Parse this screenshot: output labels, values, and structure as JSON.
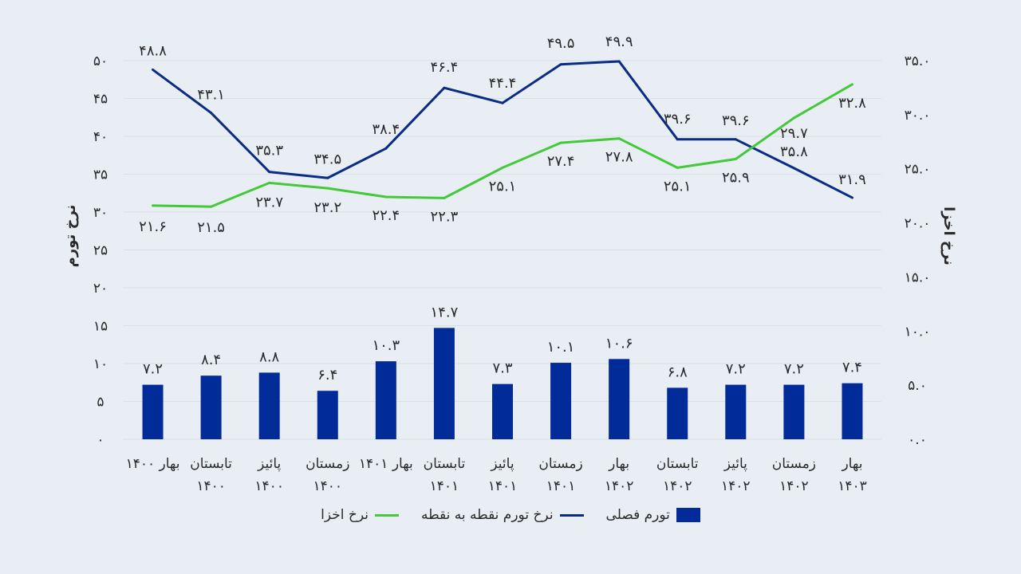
{
  "chart_data": {
    "type": "bar+line",
    "categories": [
      "بهار ۱۴۰۰",
      "تابستان ۱۴۰۰",
      "پائیز ۱۴۰۰",
      "زمستان ۱۴۰۰",
      "بهار ۱۴۰۱",
      "تابستان ۱۴۰۱",
      "پائیز ۱۴۰۱",
      "زمستان ۱۴۰۱",
      "بهار ۱۴۰۲",
      "تابستان ۱۴۰۲",
      "پائیز ۱۴۰۲",
      "زمستان ۱۴۰۲",
      "بهار ۱۴۰۳"
    ],
    "category_lines": [
      [
        "۱۴۰۰ بهار"
      ],
      [
        "تابستان",
        "۱۴۰۰"
      ],
      [
        "پائیز",
        "۱۴۰۰"
      ],
      [
        "زمستان",
        "۱۴۰۰"
      ],
      [
        "۱۴۰۱ بهار"
      ],
      [
        "تابستان",
        "۱۴۰۱"
      ],
      [
        "پائیز",
        "۱۴۰۱"
      ],
      [
        "زمستان",
        "۱۴۰۱"
      ],
      [
        "بهار",
        "۱۴۰۲"
      ],
      [
        "تابستان",
        "۱۴۰۲"
      ],
      [
        "پائیز",
        "۱۴۰۲"
      ],
      [
        "زمستان",
        "۱۴۰۲"
      ],
      [
        "بهار",
        "۱۴۰۳"
      ]
    ],
    "series": [
      {
        "name": "تورم فصلی",
        "kind": "bar",
        "axis": "left",
        "color": "#002b99",
        "values": [
          7.2,
          8.4,
          8.8,
          6.4,
          10.3,
          14.7,
          7.3,
          10.1,
          10.6,
          6.8,
          7.2,
          7.2,
          7.4
        ],
        "labels": [
          "۷.۲",
          "۸.۴",
          "۸.۸",
          "۶.۴",
          "۱۰.۳",
          "۱۴.۷",
          "۷.۳",
          "۱۰.۱",
          "۱۰.۶",
          "۶.۸",
          "۷.۲",
          "۷.۲",
          "۷.۴"
        ]
      },
      {
        "name": "نرخ تورم نقطه به نقطه",
        "kind": "line",
        "axis": "left",
        "color": "#0a2c84",
        "values": [
          48.8,
          43.1,
          35.3,
          34.5,
          38.4,
          46.4,
          44.4,
          49.5,
          49.9,
          39.6,
          39.6,
          35.8,
          31.9
        ],
        "labels": [
          "۴۸.۸",
          "۴۳.۱",
          "۳۵.۳",
          "۳۴.۵",
          "۳۸.۴",
          "۴۶.۴",
          "۴۴.۴",
          "۴۹.۵",
          "۴۹.۹",
          "۳۹.۶",
          "۳۹.۶",
          "۳۵.۸",
          "۳۱.۹"
        ]
      },
      {
        "name": "نرخ اخزا",
        "kind": "line",
        "axis": "right",
        "color": "#44c93a",
        "values": [
          21.6,
          21.5,
          23.7,
          23.2,
          22.4,
          22.3,
          25.1,
          27.4,
          27.8,
          25.1,
          25.9,
          29.7,
          32.8
        ],
        "labels": [
          "۲۱.۶",
          "۲۱.۵",
          "۲۳.۷",
          "۲۳.۲",
          "۲۲.۴",
          "۲۲.۳",
          "۲۵.۱",
          "۲۷.۴",
          "۲۷.۸",
          "۲۵.۱",
          "۲۵.۹",
          "۲۹.۷",
          "۳۲.۸"
        ]
      }
    ],
    "left_axis": {
      "title": "نرخ تورم",
      "ylim": [
        0,
        50
      ],
      "ticks": [
        0,
        5,
        10,
        15,
        20,
        25,
        30,
        35,
        40,
        45,
        50
      ],
      "tick_labels": [
        "۰",
        "۵",
        "۱۰",
        "۱۵",
        "۲۰",
        "۲۵",
        "۳۰",
        "۳۵",
        "۴۰",
        "۴۵",
        "۵۰"
      ]
    },
    "right_axis": {
      "title": "نرخ اخزا",
      "ylim": [
        0,
        35
      ],
      "ticks": [
        0,
        5,
        10,
        15,
        20,
        25,
        30,
        35
      ],
      "tick_labels": [
        "۰.۰",
        "۵.۰",
        "۱۰.۰",
        "۱۵.۰",
        "۲۰.۰",
        "۲۵.۰",
        "۳۰.۰",
        "۳۵.۰"
      ]
    },
    "grid": true,
    "legend_position": "bottom"
  }
}
